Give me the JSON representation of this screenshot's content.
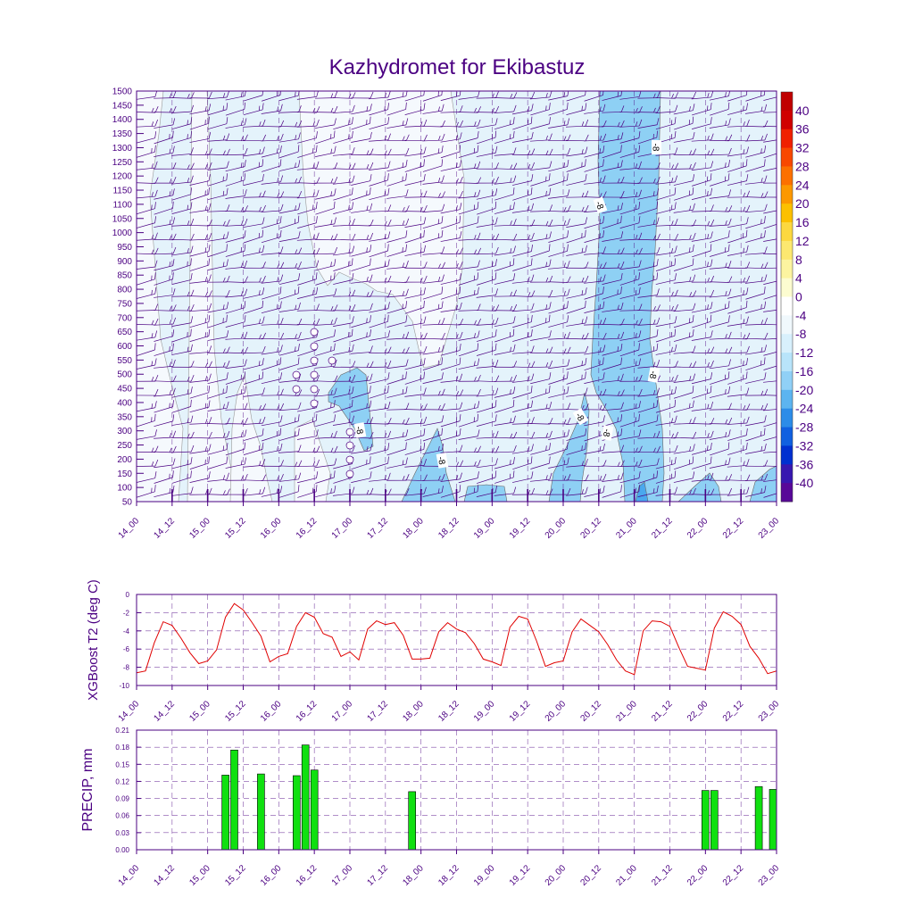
{
  "title": "Kazhydromet for Ekibastuz",
  "colors": {
    "frame": "#4b0082",
    "line": "#e00000",
    "bar": "#10e010",
    "grid": "#4b0082",
    "wind": "#4b0082"
  },
  "chart_data": [
    {
      "type": "heatmap",
      "name": "cross-section",
      "x_ticks": [
        "14_00",
        "14_12",
        "15_00",
        "15_12",
        "16_00",
        "16_12",
        "17_00",
        "17_12",
        "18_00",
        "18_12",
        "19_00",
        "19_12",
        "20_00",
        "20_12",
        "21_00",
        "21_12",
        "22_00",
        "22_12",
        "23_00"
      ],
      "y_ticks": [
        "1500",
        "1450",
        "1400",
        "1350",
        "1300",
        "1250",
        "1200",
        "1150",
        "1100",
        "1050",
        "1000",
        "950",
        "900",
        "850",
        "800",
        "750",
        "700",
        "650",
        "600",
        "550",
        "500",
        "450",
        "400",
        "350",
        "300",
        "250",
        "200",
        "150",
        "100",
        "50"
      ],
      "colorbar_labels": [
        "40",
        "36",
        "32",
        "28",
        "24",
        "20",
        "16",
        "12",
        "8",
        "4",
        "0",
        "-4",
        "-8",
        "-12",
        "-16",
        "-20",
        "-24",
        "-28",
        "-32",
        "-36",
        "-40"
      ],
      "colorbar_colors": [
        "#d00000",
        "#f02000",
        "#f84800",
        "#fc7000",
        "#fc9800",
        "#fcc000",
        "#fcd840",
        "#fce870",
        "#fcf4a0",
        "#fcfcd0",
        "#ffffff",
        "#f0f8fc",
        "#d8f0fc",
        "#b8e4fa",
        "#90d0f6",
        "#5cb4f0",
        "#2c8ce8",
        "#1060e0",
        "#0030d0",
        "#3818b0",
        "#580898"
      ],
      "contour_labels": [
        "-8",
        "-8",
        "-8",
        "-8",
        "-8",
        "-8"
      ]
    },
    {
      "type": "line",
      "name": "t2",
      "ylabel": "XGBoost T2 (deg C)",
      "ylim": [
        -10,
        0
      ],
      "y_ticks": [
        "0",
        "-2",
        "-4",
        "-6",
        "-8",
        "-10"
      ],
      "x_ticks": [
        "14_00",
        "14_12",
        "15_00",
        "15_12",
        "16_00",
        "16_12",
        "17_00",
        "17_12",
        "18_00",
        "18_12",
        "19_00",
        "19_12",
        "20_00",
        "20_12",
        "21_00",
        "21_12",
        "22_00",
        "22_12",
        "23_00"
      ],
      "x": [
        0,
        1,
        2,
        3,
        4,
        5,
        6,
        7,
        8,
        9,
        10,
        11,
        12,
        13,
        14,
        15,
        16,
        17,
        18,
        19,
        20,
        21,
        22,
        23,
        24,
        25,
        26,
        27,
        28,
        29,
        30,
        31,
        32,
        33,
        34,
        35,
        36,
        37,
        38,
        39,
        40,
        41,
        42,
        43,
        44,
        45,
        46,
        47,
        48,
        49,
        50,
        51,
        52,
        53,
        54,
        55,
        56,
        57,
        58,
        59,
        60,
        61,
        62,
        63,
        64,
        65,
        66,
        67,
        68,
        69,
        70,
        71,
        72
      ],
      "values": [
        -8.6,
        -8.4,
        -5.3,
        -3.0,
        -3.4,
        -4.8,
        -6.4,
        -7.6,
        -7.3,
        -6.1,
        -2.5,
        -1.0,
        -1.7,
        -3.1,
        -4.6,
        -7.4,
        -6.8,
        -6.5,
        -3.5,
        -2.0,
        -2.5,
        -4.3,
        -4.7,
        -6.8,
        -6.3,
        -7.2,
        -3.8,
        -2.9,
        -3.3,
        -3.1,
        -4.5,
        -7.1,
        -7.1,
        -7.0,
        -4.1,
        -3.1,
        -3.8,
        -4.2,
        -5.4,
        -7.1,
        -7.4,
        -7.8,
        -3.6,
        -2.4,
        -2.7,
        -5.1,
        -7.9,
        -7.5,
        -7.3,
        -4.1,
        -2.7,
        -3.4,
        -4.1,
        -5.5,
        -7.2,
        -8.4,
        -8.8,
        -4.0,
        -2.9,
        -3.0,
        -3.5,
        -5.8,
        -7.9,
        -8.1,
        -8.3,
        -3.7,
        -1.9,
        -2.4,
        -3.3,
        -5.7,
        -7.0,
        -8.7,
        -8.4
      ]
    },
    {
      "type": "bar",
      "name": "precip",
      "ylabel": "PRECIP, mm",
      "ylim": [
        0,
        0.21
      ],
      "y_ticks": [
        "0.21",
        "0.18",
        "0.15",
        "0.12",
        "0.09",
        "0.06",
        "0.03",
        "0.00"
      ],
      "x_ticks": [
        "14_00",
        "14_12",
        "15_00",
        "15_12",
        "16_00",
        "16_12",
        "17_00",
        "17_12",
        "18_00",
        "18_12",
        "19_00",
        "19_12",
        "20_00",
        "20_12",
        "21_00",
        "21_12",
        "22_00",
        "22_12",
        "23_00"
      ],
      "x": [
        10,
        11,
        14,
        18,
        19,
        20,
        31,
        64,
        65,
        70,
        72
      ],
      "values": [
        0.131,
        0.175,
        0.133,
        0.13,
        0.184,
        0.14,
        0.102,
        0.104,
        0.104,
        0.111,
        0.106
      ]
    }
  ]
}
